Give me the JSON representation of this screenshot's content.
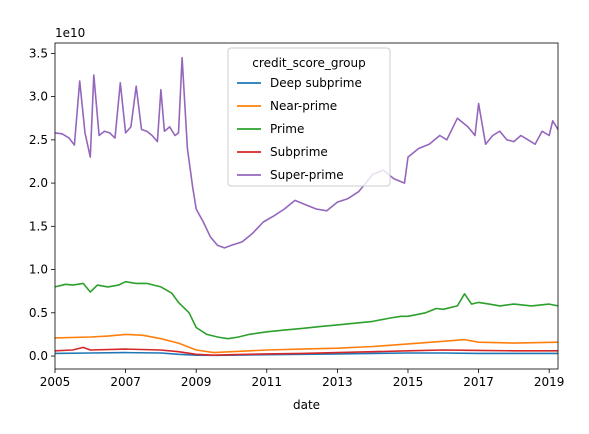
{
  "chart_data": {
    "type": "line",
    "xlabel": "date",
    "ylabel": "",
    "offset_text": "1e10",
    "legend_title": "credit_score_group",
    "legend_position": "upper-center",
    "xlim": [
      2005.0,
      2019.25
    ],
    "ylim": [
      -0.15,
      3.62
    ],
    "x_ticks": [
      2005,
      2007,
      2009,
      2011,
      2013,
      2015,
      2017,
      2019
    ],
    "x_tick_labels": [
      "2005",
      "2007",
      "2009",
      "2011",
      "2013",
      "2015",
      "2017",
      "2019"
    ],
    "y_ticks": [
      0.0,
      0.5,
      1.0,
      1.5,
      2.0,
      2.5,
      3.0,
      3.5
    ],
    "y_tick_labels": [
      "0.0",
      "0.5",
      "1.0",
      "1.5",
      "2.0",
      "2.5",
      "3.0",
      "3.5"
    ],
    "grid": false,
    "series": [
      {
        "name": "Deep subprime",
        "color": "#1f77b4",
        "x": [
          2005.0,
          2006.0,
          2007.0,
          2008.0,
          2008.5,
          2009.0,
          2009.5,
          2010.0,
          2011.0,
          2012.0,
          2013.0,
          2014.0,
          2015.0,
          2016.0,
          2017.0,
          2018.0,
          2019.25
        ],
        "y": [
          0.03,
          0.035,
          0.04,
          0.035,
          0.02,
          0.01,
          0.008,
          0.01,
          0.015,
          0.02,
          0.025,
          0.03,
          0.035,
          0.035,
          0.03,
          0.03,
          0.03
        ]
      },
      {
        "name": "Near-prime",
        "color": "#ff7f0e",
        "x": [
          2005.0,
          2006.0,
          2006.5,
          2007.0,
          2007.5,
          2008.0,
          2008.5,
          2009.0,
          2009.5,
          2010.0,
          2011.0,
          2012.0,
          2013.0,
          2014.0,
          2015.0,
          2016.0,
          2016.6,
          2017.0,
          2018.0,
          2019.25
        ],
        "y": [
          0.21,
          0.22,
          0.23,
          0.25,
          0.24,
          0.2,
          0.15,
          0.07,
          0.04,
          0.05,
          0.07,
          0.08,
          0.09,
          0.11,
          0.14,
          0.17,
          0.19,
          0.16,
          0.15,
          0.16
        ]
      },
      {
        "name": "Prime",
        "color": "#2ca02c",
        "x": [
          2005.0,
          2005.3,
          2005.5,
          2005.8,
          2006.0,
          2006.2,
          2006.5,
          2006.8,
          2007.0,
          2007.3,
          2007.6,
          2008.0,
          2008.3,
          2008.5,
          2008.8,
          2009.0,
          2009.3,
          2009.6,
          2009.9,
          2010.2,
          2010.5,
          2011.0,
          2011.5,
          2012.0,
          2012.5,
          2013.0,
          2013.5,
          2014.0,
          2014.5,
          2014.8,
          2015.0,
          2015.5,
          2015.8,
          2016.0,
          2016.4,
          2016.6,
          2016.8,
          2017.0,
          2017.3,
          2017.6,
          2018.0,
          2018.5,
          2019.0,
          2019.25
        ],
        "y": [
          0.8,
          0.83,
          0.82,
          0.84,
          0.74,
          0.82,
          0.8,
          0.82,
          0.86,
          0.84,
          0.84,
          0.8,
          0.73,
          0.62,
          0.5,
          0.33,
          0.25,
          0.22,
          0.2,
          0.22,
          0.25,
          0.28,
          0.3,
          0.32,
          0.34,
          0.36,
          0.38,
          0.4,
          0.44,
          0.46,
          0.46,
          0.5,
          0.55,
          0.54,
          0.58,
          0.72,
          0.6,
          0.62,
          0.6,
          0.58,
          0.6,
          0.58,
          0.6,
          0.58
        ]
      },
      {
        "name": "Subprime",
        "color": "#d62728",
        "x": [
          2005.0,
          2005.5,
          2005.8,
          2006.0,
          2007.0,
          2008.0,
          2008.5,
          2009.0,
          2009.5,
          2010.0,
          2011.0,
          2012.0,
          2013.0,
          2014.0,
          2015.0,
          2016.0,
          2017.0,
          2018.0,
          2019.25
        ],
        "y": [
          0.06,
          0.07,
          0.1,
          0.07,
          0.08,
          0.07,
          0.05,
          0.02,
          0.01,
          0.015,
          0.025,
          0.03,
          0.04,
          0.05,
          0.06,
          0.07,
          0.065,
          0.06,
          0.06
        ]
      },
      {
        "name": "Super-prime",
        "color": "#9467bd",
        "x": [
          2005.0,
          2005.2,
          2005.4,
          2005.55,
          2005.7,
          2005.85,
          2006.0,
          2006.1,
          2006.25,
          2006.4,
          2006.55,
          2006.7,
          2006.85,
          2007.0,
          2007.15,
          2007.3,
          2007.45,
          2007.6,
          2007.75,
          2007.9,
          2008.0,
          2008.1,
          2008.25,
          2008.4,
          2008.5,
          2008.6,
          2008.75,
          2008.9,
          2009.0,
          2009.2,
          2009.4,
          2009.6,
          2009.8,
          2010.0,
          2010.3,
          2010.6,
          2010.9,
          2011.2,
          2011.5,
          2011.8,
          2012.1,
          2012.4,
          2012.7,
          2013.0,
          2013.3,
          2013.6,
          2013.9,
          2014.0,
          2014.3,
          2014.6,
          2014.9,
          2015.0,
          2015.3,
          2015.6,
          2015.9,
          2016.1,
          2016.4,
          2016.7,
          2016.9,
          2017.0,
          2017.2,
          2017.4,
          2017.6,
          2017.8,
          2018.0,
          2018.2,
          2018.4,
          2018.6,
          2018.8,
          2019.0,
          2019.1,
          2019.25
        ],
        "y": [
          2.58,
          2.57,
          2.52,
          2.44,
          3.18,
          2.58,
          2.3,
          3.25,
          2.55,
          2.6,
          2.58,
          2.52,
          3.16,
          2.58,
          2.65,
          3.12,
          2.62,
          2.6,
          2.55,
          2.48,
          3.08,
          2.6,
          2.65,
          2.55,
          2.58,
          3.45,
          2.4,
          1.95,
          1.7,
          1.55,
          1.38,
          1.28,
          1.25,
          1.28,
          1.32,
          1.42,
          1.55,
          1.62,
          1.7,
          1.8,
          1.75,
          1.7,
          1.68,
          1.78,
          1.82,
          1.9,
          2.05,
          2.1,
          2.15,
          2.05,
          2.0,
          2.3,
          2.4,
          2.45,
          2.55,
          2.5,
          2.75,
          2.65,
          2.55,
          2.92,
          2.45,
          2.55,
          2.6,
          2.5,
          2.48,
          2.55,
          2.5,
          2.45,
          2.6,
          2.55,
          2.72,
          2.62
        ]
      }
    ]
  }
}
